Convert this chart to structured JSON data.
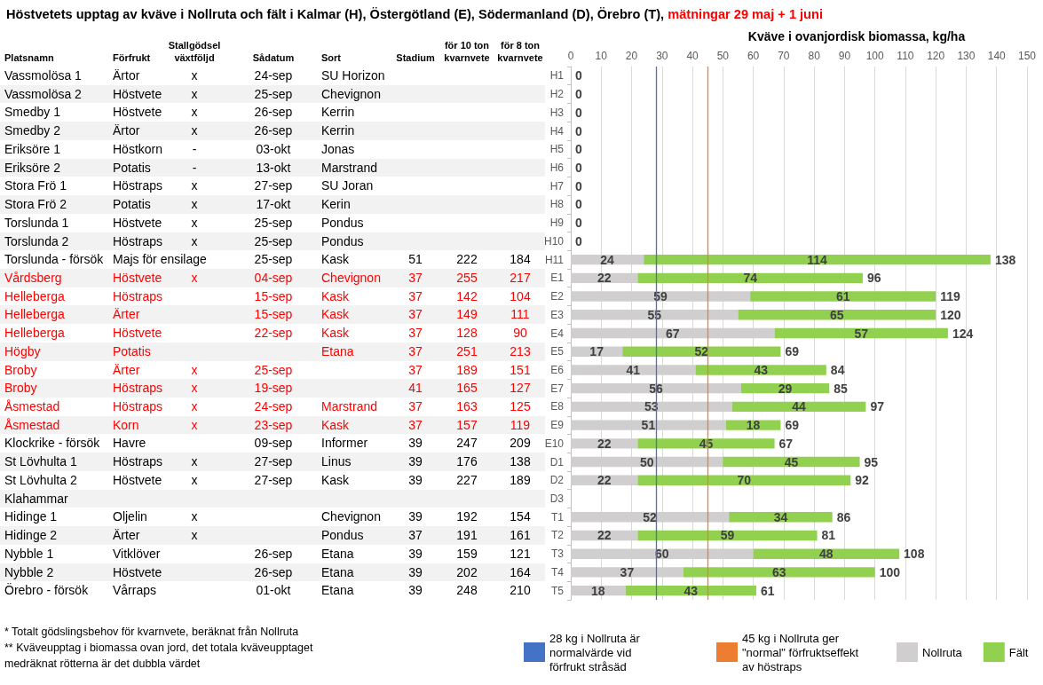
{
  "chart_data": [
    {
      "type": "other",
      "title": "Höstvetets upptag av kväve i Nollruta och fält i Kalmar (H), Östergötland (E), Södermanland (D), Örebro (T),",
      "subtitle": "mätningar 29 maj + 1 juni",
      "categories": [
        "Platsnamn",
        "Förfrukt",
        "Stallgödsel växtföljd",
        "Sådatum",
        "Sort",
        "Stadium",
        "för 10 ton kvarnvete",
        "för 8 ton kvarnvete"
      ],
      "cell_labels": [
        [
          "Vassmolösa 1",
          "Ärtor",
          "x",
          "24-sep",
          "SU Horizon",
          null,
          null,
          null
        ],
        [
          "Vassmolösa 2",
          "Höstvete",
          "x",
          "25-sep",
          "Chevignon",
          null,
          null,
          null
        ],
        [
          "Smedby 1",
          "Höstvete",
          "x",
          "26-sep",
          "Kerrin",
          null,
          null,
          null
        ],
        [
          "Smedby 2",
          "Ärtor",
          "x",
          "26-sep",
          "Kerrin",
          null,
          null,
          null
        ],
        [
          "Eriksöre 1",
          "Höstkorn",
          "-",
          "03-okt",
          "Jonas",
          null,
          null,
          null
        ],
        [
          "Eriksöre 2",
          "Potatis",
          "-",
          "13-okt",
          "Marstrand",
          null,
          null,
          null
        ],
        [
          "Stora Frö 1",
          "Höstraps",
          "x",
          "27-sep",
          "SU Joran",
          null,
          null,
          null
        ],
        [
          "Stora Frö 2",
          "Potatis",
          "x",
          "17-okt",
          "Kerin",
          null,
          null,
          null
        ],
        [
          "Torslunda 1",
          "Höstvete",
          "x",
          "25-sep",
          "Pondus",
          null,
          null,
          null
        ],
        [
          "Torslunda 2",
          "Höstraps",
          "x",
          "25-sep",
          "Pondus",
          null,
          null,
          null
        ],
        [
          "Torslunda - försök",
          "Majs för ensilage",
          null,
          "25-sep",
          "Kask",
          "51",
          "222",
          "184"
        ],
        [
          "Vårdsberg",
          "Höstvete",
          "x",
          "04-sep",
          "Chevignon",
          "37",
          "255",
          "217"
        ],
        [
          "Helleberga",
          "Höstraps",
          null,
          "15-sep",
          "Kask",
          "37",
          "142",
          "104"
        ],
        [
          "Helleberga",
          "Ärter",
          null,
          "15-sep",
          "Kask",
          "37",
          "149",
          "111"
        ],
        [
          "Helleberga",
          "Höstvete",
          null,
          "22-sep",
          "Kask",
          "37",
          "128",
          "90"
        ],
        [
          "Högby",
          "Potatis",
          null,
          null,
          "Etana",
          "37",
          "251",
          "213"
        ],
        [
          "Broby",
          "Ärter",
          "x",
          "25-sep",
          null,
          "37",
          "189",
          "151"
        ],
        [
          "Broby",
          "Höstraps",
          "x",
          "19-sep",
          null,
          "41",
          "165",
          "127"
        ],
        [
          "Åsmestad",
          "Höstraps",
          "x",
          "24-sep",
          "Marstrand",
          "37",
          "163",
          "125"
        ],
        [
          "Åsmestad",
          "Korn",
          "x",
          "23-sep",
          "Kask",
          "37",
          "157",
          "119"
        ],
        [
          "Klockrike - försök",
          "Havre",
          null,
          "09-sep",
          "Informer",
          "39",
          "247",
          "209"
        ],
        [
          "St Lövhulta 1",
          "Höstraps",
          "x",
          "27-sep",
          "Linus",
          "39",
          "176",
          "138"
        ],
        [
          "St Lövhulta 2",
          "Höstvete",
          "x",
          "27-sep",
          "Kask",
          "39",
          "227",
          "189"
        ],
        [
          "Klahammar",
          null,
          null,
          null,
          null,
          null,
          null,
          null
        ],
        [
          "Hidinge 1",
          "Oljelin",
          "x",
          null,
          "Chevignon",
          "39",
          "192",
          "154"
        ],
        [
          "Hidinge 2",
          "Ärter",
          "x",
          null,
          "Pondus",
          "37",
          "191",
          "161"
        ],
        [
          "Nybble 1",
          "Vitklöver",
          null,
          "26-sep",
          "Etana",
          "39",
          "159",
          "121"
        ],
        [
          "Nybble 2",
          "Höstvete",
          null,
          "26-sep",
          "Etana",
          "39",
          "202",
          "164"
        ],
        [
          "Örebro - försök",
          "Vårraps",
          null,
          "01-okt",
          "Etana",
          "39",
          "248",
          "210"
        ]
      ],
      "colors": [
        "#000000",
        "#000000",
        "#000000",
        "#000000",
        "#000000",
        "#000000",
        "#000000",
        "#000000",
        "#000000",
        "#000000",
        "#000000",
        "#ff0000",
        "#ff0000",
        "#ff0000",
        "#ff0000",
        "#ff0000",
        "#ff0000",
        "#ff0000",
        "#ff0000",
        "#ff0000",
        "#000000",
        "#000000",
        "#000000",
        "#000000",
        "#000000",
        "#000000",
        "#000000",
        "#000000",
        "#000000"
      ],
      "annotations": [
        "* Totalt gödslingsbehov för  kvarnvete, beräknat från Nollruta",
        "** Kväveupptag i biomassa ovan jord, det totala kväveupptaget medräknat rötterna är det dubbla värdet"
      ]
    },
    {
      "type": "bar",
      "orientation": "horizontal",
      "stacked": true,
      "xlabel": "Kväve i ovanjordisk biomassa, kg/ha",
      "categories": [
        "H1",
        "H2",
        "H3",
        "H4",
        "H5",
        "H6",
        "H7",
        "H8",
        "H9",
        "H10",
        "H11",
        "E1",
        "E2",
        "E3",
        "E4",
        "E5",
        "E6",
        "E7",
        "E8",
        "E9",
        "E10",
        "D1",
        "D2",
        "D3",
        "T1",
        "T2",
        "T3",
        "T4",
        "T5"
      ],
      "series": [
        {
          "name": "Nollruta",
          "color": "#d0cece",
          "values": [
            null,
            null,
            null,
            null,
            null,
            null,
            null,
            null,
            null,
            null,
            24,
            22,
            59,
            55,
            67,
            17,
            41,
            56,
            53,
            51,
            22,
            50,
            22,
            null,
            52,
            22,
            60,
            37,
            18
          ]
        },
        {
          "name": "Fält",
          "color": "#92d050",
          "values": [
            null,
            null,
            null,
            null,
            null,
            null,
            null,
            null,
            null,
            null,
            114,
            74,
            61,
            65,
            57,
            52,
            43,
            29,
            44,
            18,
            45,
            45,
            70,
            null,
            34,
            59,
            48,
            63,
            43
          ]
        }
      ],
      "totals": [
        "0",
        "0",
        "0",
        "0",
        "0",
        "0",
        "0",
        "0",
        "0",
        "0",
        "138",
        "96",
        "119",
        "120",
        "124",
        "69",
        "84",
        "85",
        "97",
        "69",
        "67",
        "95",
        "92",
        null,
        "86",
        "81",
        "108",
        "100",
        "61"
      ],
      "data_labels": true,
      "xlim": [
        0,
        150
      ],
      "xticks": [
        0,
        10,
        20,
        30,
        40,
        50,
        60,
        70,
        80,
        90,
        100,
        110,
        120,
        130,
        140,
        150
      ],
      "grid": "x",
      "legend": "bottom",
      "ref_lines": [
        {
          "axis": "x",
          "value": 28,
          "label": "28 kg i Nollruta är normalvärde vid förfrukt stråsäd",
          "color": "#4472c4"
        },
        {
          "axis": "x",
          "value": 45,
          "label": "45 kg i Nollruta ger \"normal\" förfruktseffekt av höstraps",
          "color": "#ed7d31"
        }
      ]
    }
  ]
}
